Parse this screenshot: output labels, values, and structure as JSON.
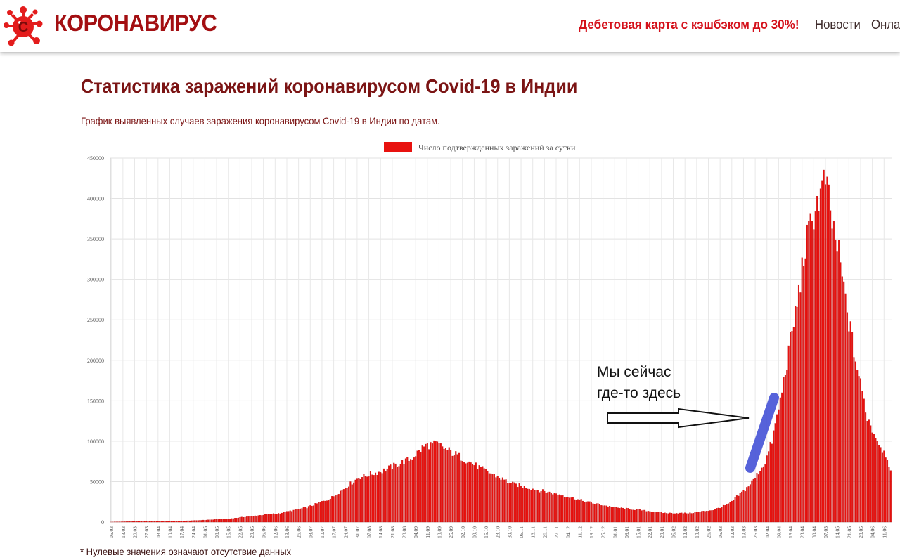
{
  "header": {
    "logo_letter": "С",
    "logo_text": "КОРОНАВИРУС",
    "promo_text": "Дебетовая карта с кэшбэком до 30%!",
    "nav": {
      "news": "Новости",
      "online": "Онлайн"
    }
  },
  "page": {
    "title": "Статистика заражений коронавирусом Covid-19 в Индии",
    "subtitle": "График выявленных случаев заражения коронавирусом Covid-19 в Индии по датам.",
    "footnote": "* Нулевые значения означают отсутствие данных"
  },
  "annotation": {
    "line1": "Мы сейчас",
    "line2": "где-то здесь"
  },
  "colors": {
    "brand": "#a30f12",
    "bar": "#e8120f",
    "bar_stroke": "#b90505",
    "highlight": "#4451d6"
  },
  "chart_data": {
    "type": "bar",
    "title": "",
    "legend": {
      "label": "Число подтвержденных заражений за сутки",
      "position": "top"
    },
    "xlabel": "",
    "ylabel": "",
    "ylim": [
      0,
      450000
    ],
    "yticks": [
      0,
      50000,
      100000,
      150000,
      200000,
      250000,
      300000,
      350000,
      400000,
      450000
    ],
    "grid": true,
    "start_date": "2020-03-06",
    "tick_every_days": 7,
    "xticks": [
      "06.03",
      "13.03",
      "20.03",
      "27.03",
      "03.04",
      "10.04",
      "17.04",
      "24.04",
      "01.05",
      "08.05",
      "15.05",
      "22.05",
      "29.05",
      "05.06",
      "12.06",
      "19.06",
      "26.06",
      "03.07",
      "10.07",
      "17.07",
      "24.07",
      "31.07",
      "07.08",
      "14.08",
      "21.08",
      "28.08",
      "04.09",
      "11.09",
      "18.09",
      "25.09",
      "02.10",
      "09.10",
      "16.10",
      "23.10",
      "30.10",
      "06.11",
      "13.11",
      "20.11",
      "27.11",
      "04.12",
      "11.12",
      "18.12",
      "25.12",
      "01.01",
      "08.01",
      "15.01",
      "22.01",
      "29.01",
      "05.02",
      "12.02",
      "19.02",
      "26.02",
      "05.03",
      "12.03",
      "19.03",
      "26.03",
      "02.04",
      "09.04",
      "16.04",
      "23.04",
      "30.04",
      "07.05",
      "14.05",
      "21.05",
      "28.05",
      "04.06",
      "11.06"
    ],
    "series": [
      {
        "name": "Число подтвержденных заражений за сутки",
        "dates": [
          "2020-03-06",
          "2020-04-01",
          "2020-04-15",
          "2020-05-01",
          "2020-05-15",
          "2020-06-01",
          "2020-06-15",
          "2020-07-01",
          "2020-07-15",
          "2020-08-01",
          "2020-08-15",
          "2020-09-01",
          "2020-09-10",
          "2020-09-17",
          "2020-10-01",
          "2020-10-15",
          "2020-11-01",
          "2020-11-15",
          "2020-12-01",
          "2020-12-15",
          "2021-01-01",
          "2021-01-15",
          "2021-02-01",
          "2021-02-15",
          "2021-03-01",
          "2021-03-10",
          "2021-03-20",
          "2021-03-25",
          "2021-04-01",
          "2021-04-05",
          "2021-04-10",
          "2021-04-15",
          "2021-04-20",
          "2021-04-25",
          "2021-05-01",
          "2021-05-05",
          "2021-05-07",
          "2021-05-10",
          "2021-05-15",
          "2021-05-20",
          "2021-05-25",
          "2021-06-01",
          "2021-06-05",
          "2021-06-10",
          "2021-06-13",
          "2021-06-15"
        ],
        "values": [
          30,
          1500,
          1200,
          2500,
          4000,
          8000,
          11000,
          18000,
          29000,
          55000,
          63000,
          78000,
          95000,
          96000,
          80000,
          64000,
          47000,
          40000,
          33000,
          25000,
          18000,
          15000,
          11000,
          11000,
          15000,
          22000,
          40000,
          52000,
          74000,
          100000,
          150000,
          210000,
          270000,
          340000,
          390000,
          410000,
          425000,
          380000,
          330000,
          260000,
          200000,
          130000,
          110000,
          90000,
          80000,
          62000
        ]
      }
    ]
  }
}
